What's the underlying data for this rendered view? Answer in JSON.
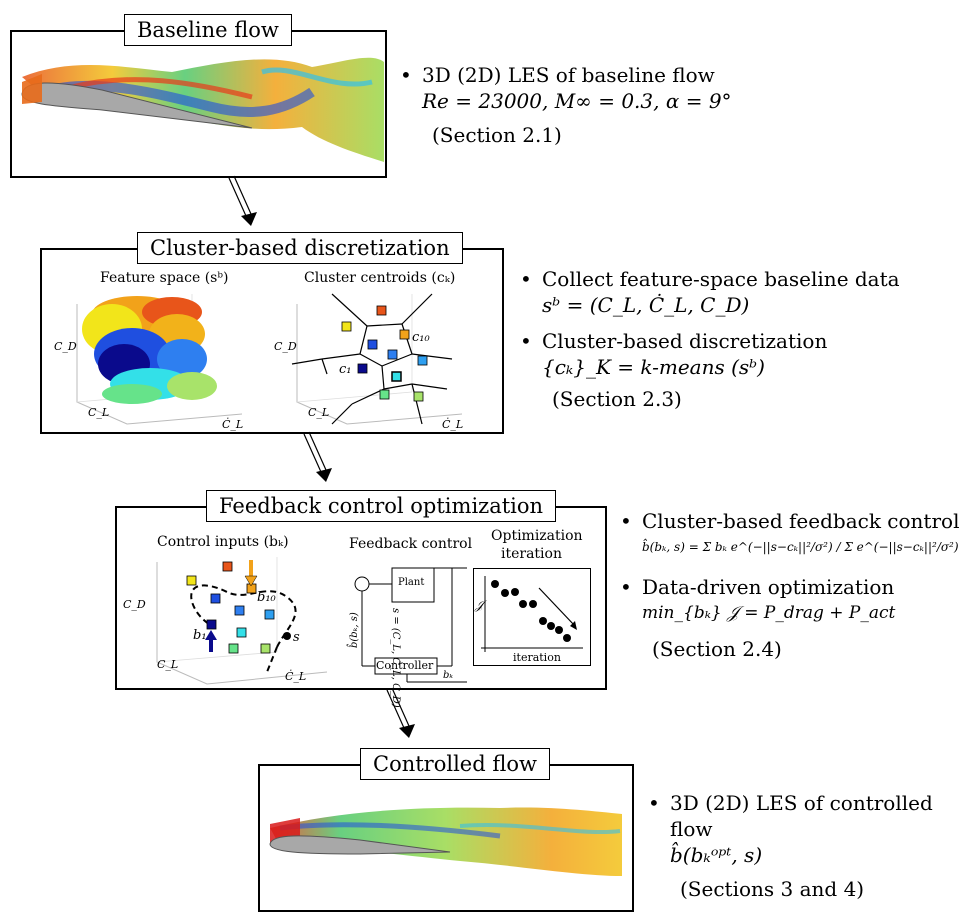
{
  "stage1": {
    "title": "Baseline flow",
    "bullet1_line1": "3D (2D) LES of baseline flow",
    "bullet1_line2": "Re = 23000, M∞ = 0.3, α = 9°",
    "section": "(Section 2.1)"
  },
  "stage2": {
    "title": "Cluster-based discretization",
    "sub_left": "Feature space (sᵇ)",
    "sub_right": "Cluster centroids (cₖ)",
    "axis_cd": "C_D",
    "axis_cl": "C_L",
    "axis_cldot": "Ċ_L",
    "label_c10": "c₁₀",
    "label_c1": "c₁",
    "bullet1_line1": "Collect feature-space baseline data",
    "bullet1_line2": "sᵇ = (C_L, Ċ_L, C_D)",
    "bullet2_line1": "Cluster-based discretization",
    "bullet2_line2": "{cₖ}_K = k-means (sᵇ)",
    "section": "(Section 2.3)"
  },
  "stage3": {
    "title": "Feedback control optimization",
    "sub_left": "Control inputs (bₖ)",
    "sub_mid": "Feedback control",
    "sub_right_1": "Optimization",
    "sub_right_2": "iteration",
    "label_b10": "b₁₀",
    "label_b1": "b₁",
    "label_s": "s",
    "plant": "Plant",
    "controller": "Controller",
    "sig_s": "s = (C_L, Ċ_L, C_D)",
    "sig_b": "b̂(bₖ, s)",
    "sig_bk": "bₖ",
    "axis_j": "𝒥",
    "axis_iter": "iteration",
    "bullet1_line1": "Cluster-based feedback control",
    "bullet1_line2": "b̂(bₖ, s) = Σ bₖ e^(−||s−cₖ||²/σ²) / Σ e^(−||s−cₖ||²/σ²)",
    "bullet2_line1": "Data-driven optimization",
    "bullet2_line2": "min_{bₖ} 𝒥 = P_drag + P_act",
    "section": "(Section 2.4)"
  },
  "stage4": {
    "title": "Controlled flow",
    "bullet1_line1": "3D (2D) LES of controlled flow",
    "bullet1_line2": "b̂(bₖᵒᵖᵗ, s)",
    "section": "(Sections 3 and 4)"
  },
  "colors": {
    "c_darkblue": "#0a0a8c",
    "c_blue": "#1f4fe0",
    "c_midblue": "#2e7ff0",
    "c_cyan": "#33e0e8",
    "c_green": "#66e38a",
    "c_yellow": "#f2e51a",
    "c_orange": "#f2a21a",
    "c_red_orange": "#e8551a",
    "c_lime": "#a8e36a"
  }
}
